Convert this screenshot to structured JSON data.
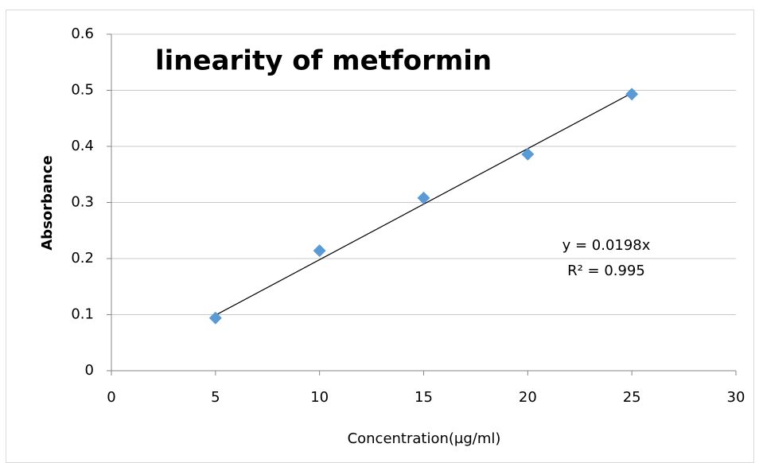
{
  "chart_data": {
    "type": "scatter",
    "title": "linearity of metformin",
    "x_label": "Concentration(µg/ml)",
    "y_label": "Absorbance",
    "series": [
      {
        "name": "Absorbance",
        "color": "#5b9bd5",
        "x": [
          5,
          10,
          15,
          20,
          25
        ],
        "values": [
          0.094,
          0.214,
          0.308,
          0.386,
          0.493
        ]
      }
    ],
    "trendline": {
      "slope": 0.0198,
      "equation": "y = 0.0198x",
      "r_squared": "R² = 0.995",
      "color": "#000000"
    },
    "xlim": [
      0,
      30
    ],
    "xticks": [
      0,
      5,
      10,
      15,
      20,
      25,
      30
    ],
    "ylim": [
      0,
      0.6
    ],
    "yticks": [
      0,
      0.1,
      0.2,
      0.3,
      0.4,
      0.5,
      0.6
    ],
    "grid": true
  }
}
